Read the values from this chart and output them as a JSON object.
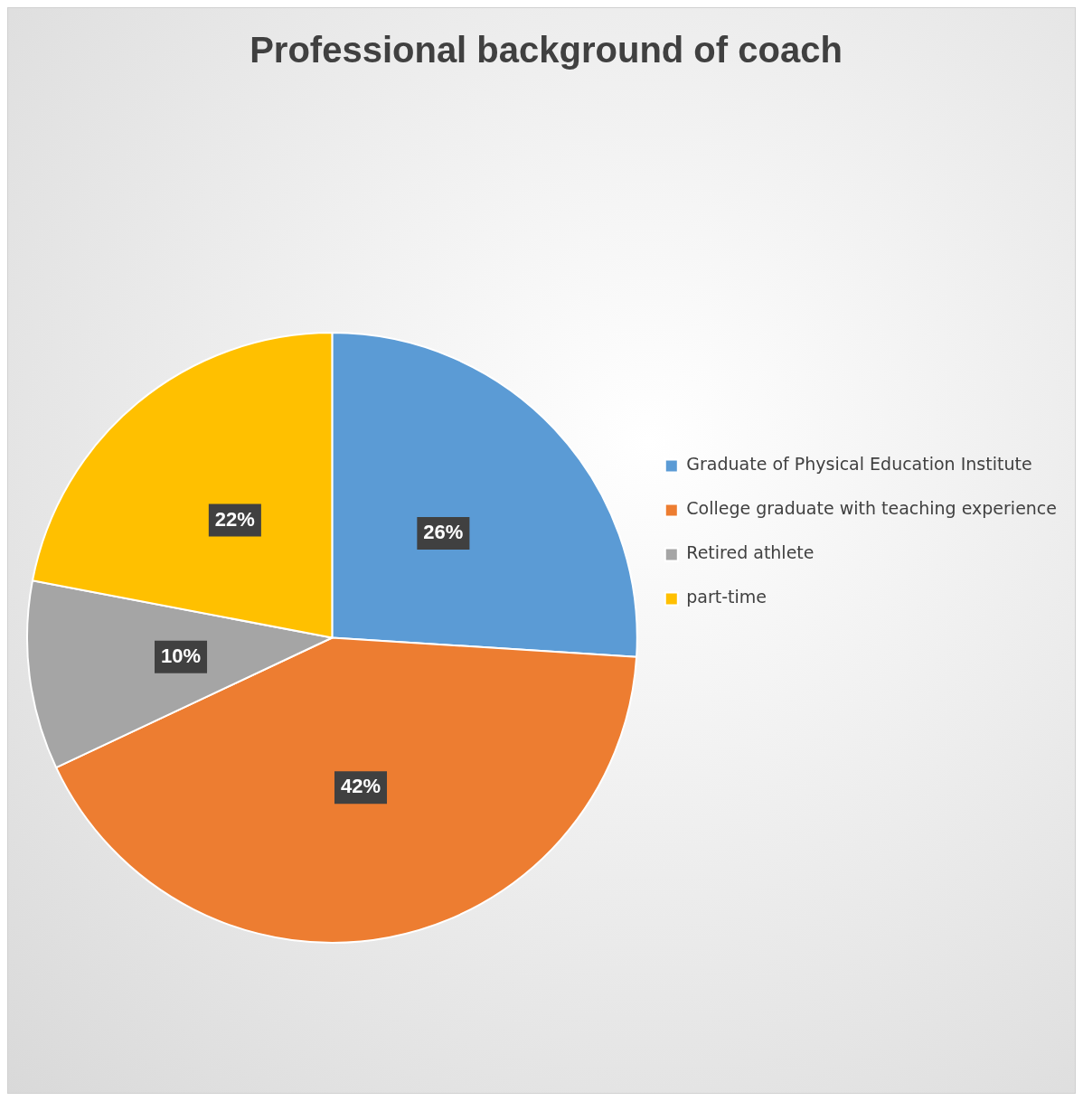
{
  "chart_data": {
    "type": "pie",
    "title": "Professional background of coach",
    "categories": [
      "Graduate of Physical Education Institute",
      "College graduate with teaching experience",
      "Retired athlete",
      "part-time"
    ],
    "values": [
      26,
      42,
      10,
      22
    ],
    "colors": [
      "#5b9bd5",
      "#ed7d31",
      "#a5a5a5",
      "#ffc000"
    ],
    "value_labels": [
      "26%",
      "42%",
      "10%",
      "22%"
    ],
    "legend": "right"
  }
}
